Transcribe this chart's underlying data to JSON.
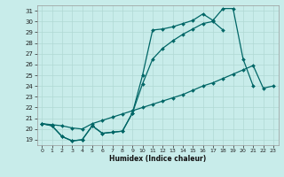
{
  "xlabel": "Humidex (Indice chaleur)",
  "bg_color": "#c8ecea",
  "line_color": "#006666",
  "grid_color": "#b0d8d4",
  "xlim": [
    -0.5,
    23.5
  ],
  "ylim": [
    18.5,
    31.5
  ],
  "yticks": [
    19,
    20,
    21,
    22,
    23,
    24,
    25,
    26,
    27,
    28,
    29,
    30,
    31
  ],
  "xticks": [
    0,
    1,
    2,
    3,
    4,
    5,
    6,
    7,
    8,
    9,
    10,
    11,
    12,
    13,
    14,
    15,
    16,
    17,
    18,
    19,
    20,
    21,
    22,
    23
  ],
  "line1_x": [
    0,
    1,
    2,
    3,
    4,
    5,
    6,
    7,
    8,
    9,
    10,
    11,
    12,
    13,
    14,
    15,
    16,
    17,
    18,
    19,
    20,
    21
  ],
  "line1_y": [
    20.5,
    20.3,
    19.3,
    18.9,
    19.0,
    20.3,
    19.6,
    19.7,
    19.8,
    21.5,
    25.0,
    29.2,
    29.3,
    29.5,
    29.8,
    30.1,
    30.7,
    30.1,
    31.2,
    31.2,
    26.5,
    24.0
  ],
  "line2_x": [
    0,
    1,
    2,
    3,
    4,
    5,
    6,
    7,
    8,
    9,
    10,
    11,
    12,
    13,
    14,
    15,
    16,
    17,
    18
  ],
  "line2_y": [
    20.5,
    20.3,
    19.3,
    18.9,
    19.0,
    20.3,
    19.6,
    19.7,
    19.8,
    21.5,
    24.2,
    26.5,
    27.5,
    28.2,
    28.8,
    29.3,
    29.8,
    30.0,
    29.2
  ],
  "line3_x": [
    0,
    1,
    2,
    3,
    4,
    5,
    6,
    7,
    8,
    9,
    10,
    11,
    12,
    13,
    14,
    15,
    16,
    17,
    18,
    19,
    20,
    21,
    22,
    23
  ],
  "line3_y": [
    20.5,
    20.4,
    20.3,
    20.1,
    20.0,
    20.5,
    20.8,
    21.1,
    21.4,
    21.7,
    22.0,
    22.3,
    22.6,
    22.9,
    23.2,
    23.6,
    24.0,
    24.3,
    24.7,
    25.1,
    25.5,
    25.9,
    23.8,
    24.0
  ]
}
